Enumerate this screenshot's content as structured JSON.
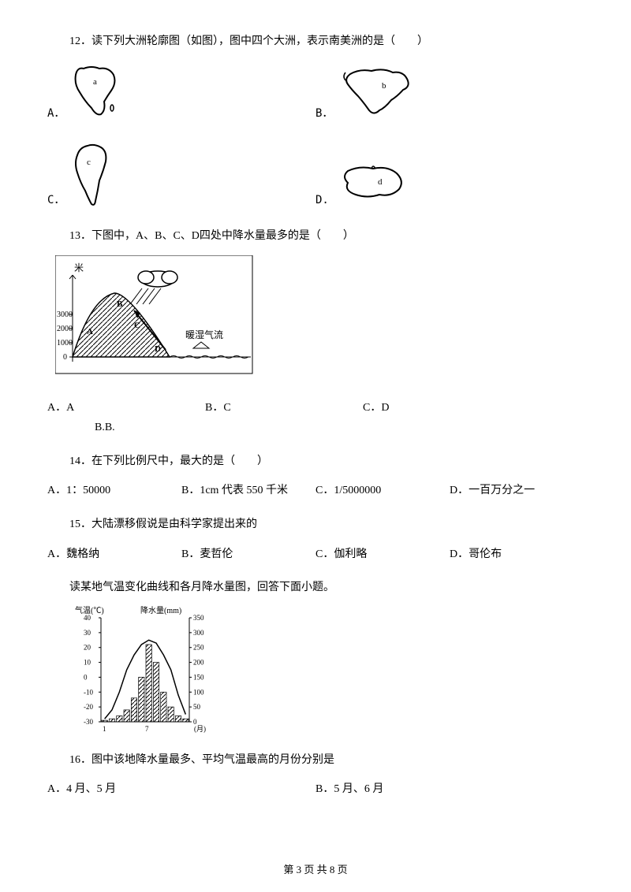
{
  "q12": {
    "text": "12．读下列大洲轮廓图（如图），图中四个大洲，表示南美洲的是（　　）",
    "options": {
      "A": "A．",
      "B": "B．",
      "C": "C．",
      "D": "D."
    },
    "continent_labels": {
      "a": "a",
      "b": "b",
      "c": "c",
      "d": "d"
    }
  },
  "q13": {
    "text": "13．下图中，A、B、C、D四处中降水量最多的是（　　）",
    "options": {
      "A": "A．A",
      "BB": "B.B.",
      "BC": "B．C",
      "CD": "C．D"
    },
    "diagram": {
      "y_unit": "米",
      "y_ticks": [
        "3000",
        "2000",
        "1000",
        "0"
      ],
      "labels": [
        "A",
        "B",
        "C",
        "D"
      ],
      "arrow_label": "暖湿气流",
      "cloud": true
    }
  },
  "q14": {
    "text": "14．在下列比例尺中，最大的是（　　）",
    "options": {
      "A": "A．1：50000",
      "B": "B．1cm 代表 550 千米",
      "C": "C．1/5000000",
      "D": "D．一百万分之一"
    }
  },
  "q15": {
    "text": "15．大陆漂移假说是由科学家提出来的",
    "options": {
      "A": "A．魏格纳",
      "B": "B．麦哲伦",
      "C": "C．伽利略",
      "D": "D．哥伦布"
    }
  },
  "climate_intro": "读某地气温变化曲线和各月降水量图，回答下面小题。",
  "climate_chart": {
    "left_label": "气温(℃)",
    "right_label": "降水量(mm)",
    "left_ticks": [
      "40",
      "30",
      "20",
      "10",
      "0",
      "-10",
      "-20",
      "-30"
    ],
    "right_ticks": [
      "350",
      "300",
      "250",
      "200",
      "150",
      "100",
      "50",
      "0"
    ],
    "x_ticks": [
      "1",
      "7",
      "(月)"
    ],
    "temp_values": [
      -28,
      -22,
      -10,
      5,
      15,
      22,
      25,
      23,
      15,
      5,
      -12,
      -25
    ],
    "precip_values": [
      5,
      10,
      20,
      40,
      80,
      150,
      260,
      200,
      100,
      50,
      20,
      10
    ],
    "temp_ylim": [
      -30,
      40
    ],
    "precip_ylim": [
      0,
      350
    ]
  },
  "q16": {
    "text": "16．图中该地降水量最多、平均气温最高的月份分别是",
    "options": {
      "A": "A．4 月、5 月",
      "B": "B．5 月、6 月"
    }
  },
  "footer": {
    "text": "第 3 页 共 8 页"
  }
}
